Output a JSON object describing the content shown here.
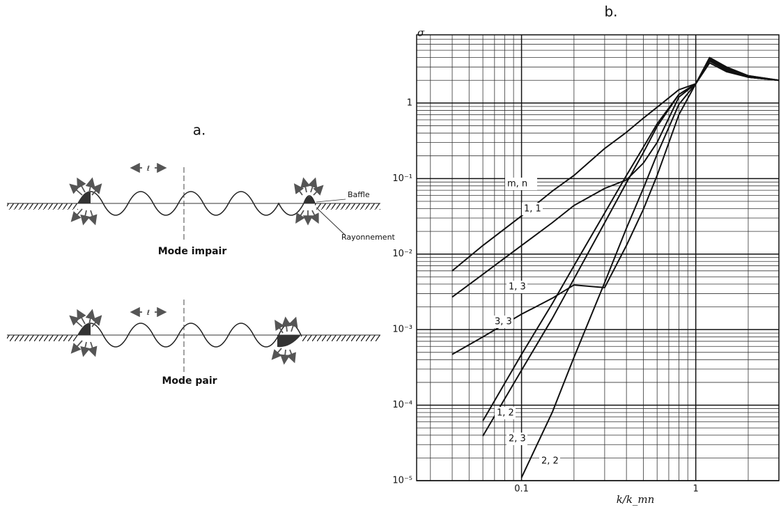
{
  "diagram": {
    "label": "a.",
    "baffle": "Baffle",
    "radiation": "Rayonnement",
    "wavelength": "ℓ",
    "mode_odd": "Mode impair",
    "mode_even": "Mode pair"
  },
  "chart_data": {
    "type": "line",
    "title": "b.",
    "y_label": "σ",
    "x_label": "k/k_mn",
    "log_x": true,
    "log_y": true,
    "grid": true,
    "color": "#111111",
    "xlim": [
      0.025,
      3
    ],
    "ylim": [
      1e-05,
      8
    ],
    "xticks": [
      0.1,
      1
    ],
    "yticks": [
      {
        "value": 1e-05,
        "label": "10⁻⁵"
      },
      {
        "value": 0.0001,
        "label": "10⁻⁴"
      },
      {
        "value": 0.001,
        "label": "10⁻³"
      },
      {
        "value": 0.01,
        "label": "10⁻²"
      },
      {
        "value": 0.1,
        "label": "10⁻¹"
      },
      1
    ],
    "legend_title": "m, n",
    "x": [
      0.04,
      0.06,
      0.1,
      0.15,
      0.2,
      0.3,
      0.4,
      0.5,
      0.6,
      0.8,
      1,
      1.2,
      1.5,
      2,
      3
    ],
    "series": [
      {
        "name": "1, 1",
        "values": [
          0.006,
          0.013,
          0.032,
          0.068,
          0.11,
          0.25,
          0.41,
          0.63,
          0.88,
          1.5,
          1.8,
          3.4,
          2.6,
          2.2,
          2.0
        ]
      },
      {
        "name": "1, 3",
        "values": [
          0.0027,
          0.0054,
          0.013,
          0.026,
          0.044,
          0.074,
          0.096,
          0.16,
          0.3,
          1.2,
          1.8,
          3.8,
          2.8,
          2.2,
          2.0
        ]
      },
      {
        "name": "3, 3",
        "values": [
          0.00047,
          0.0008,
          0.0016,
          0.0026,
          0.0039,
          0.0036,
          0.013,
          0.039,
          0.11,
          0.7,
          1.8,
          4.0,
          3.0,
          2.3,
          2.0
        ]
      },
      {
        "name": "1, 2",
        "values": [
          null,
          6.2e-05,
          0.00047,
          0.0022,
          0.007,
          0.035,
          0.11,
          0.26,
          0.53,
          1.3,
          1.8,
          3.6,
          2.7,
          2.2,
          2.0
        ]
      },
      {
        "name": "2, 3",
        "values": [
          null,
          3.9e-05,
          0.00029,
          0.0014,
          0.0047,
          0.026,
          0.088,
          0.22,
          0.49,
          1.3,
          1.8,
          3.7,
          2.8,
          2.2,
          2.0
        ]
      },
      {
        "name": "2, 2",
        "values": [
          null,
          null,
          1.1e-05,
          8e-05,
          0.00043,
          0.0042,
          0.022,
          0.074,
          0.21,
          0.96,
          1.8,
          3.9,
          2.9,
          2.3,
          2.0
        ]
      }
    ]
  }
}
